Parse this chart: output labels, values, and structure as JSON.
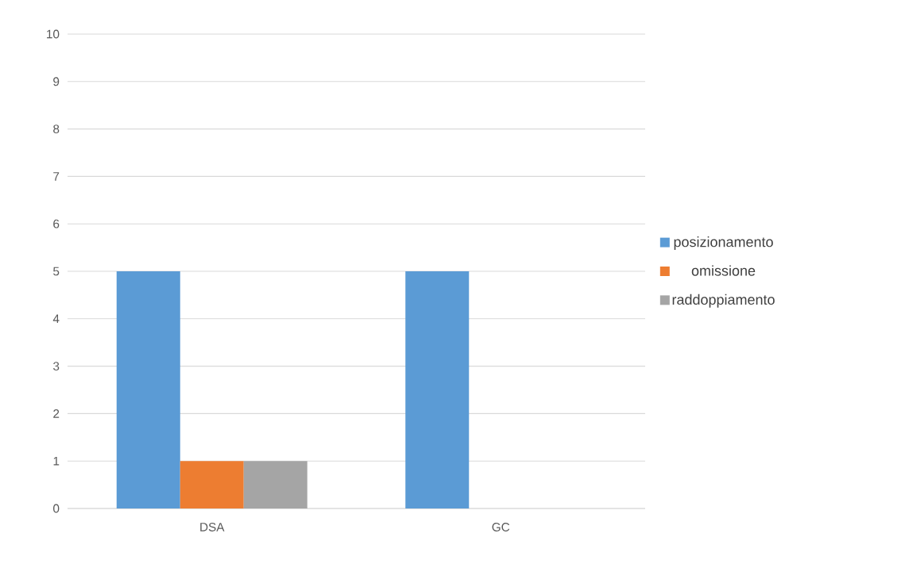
{
  "chart_data": {
    "type": "bar",
    "categories": [
      "DSA",
      "GC"
    ],
    "series": [
      {
        "name": "posizionamento",
        "color": "#5b9bd5",
        "values": [
          5,
          5
        ]
      },
      {
        "name": "omissione",
        "color": "#ed7d31",
        "values": [
          1,
          0
        ]
      },
      {
        "name": "raddoppiamento",
        "color": "#a5a5a5",
        "values": [
          1,
          0
        ]
      }
    ],
    "ylim": [
      0,
      10
    ],
    "yticks": [
      0,
      1,
      2,
      3,
      4,
      5,
      6,
      7,
      8,
      9,
      10
    ],
    "grid": "y",
    "legend": "right"
  }
}
